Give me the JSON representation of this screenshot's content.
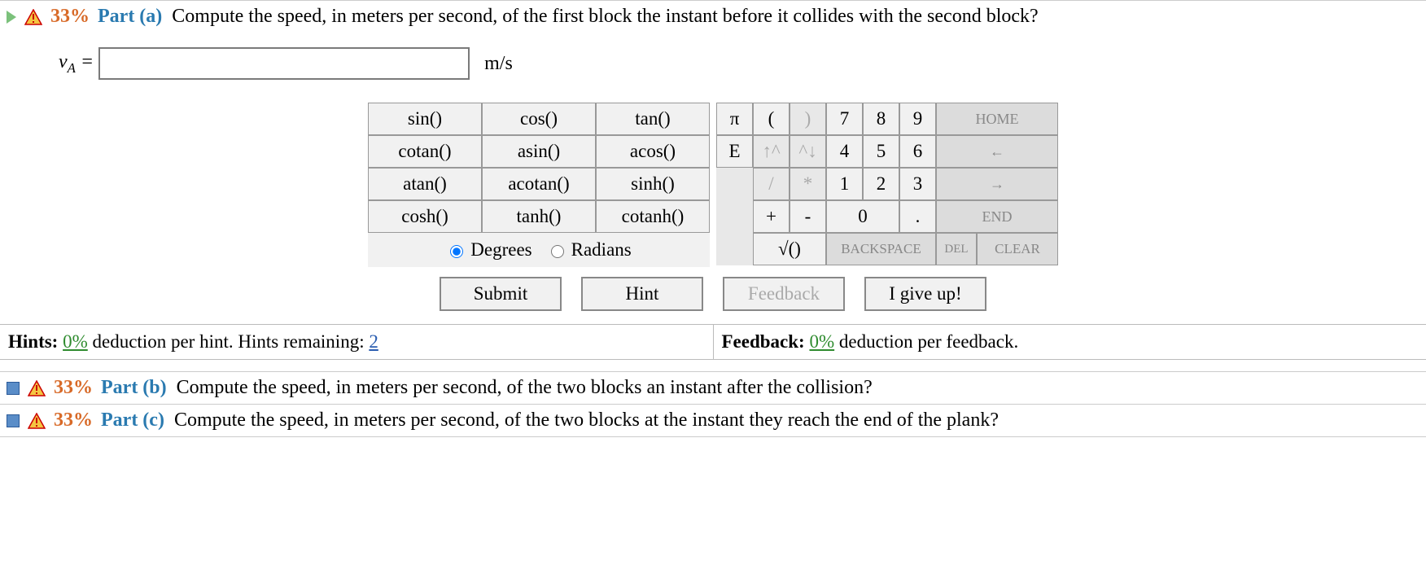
{
  "partA": {
    "percent": "33%",
    "label": "Part (a)",
    "question": "Compute the speed, in meters per second, of the first block the instant before it collides with the second block?",
    "var_html": "v<sub>A</sub>&nbsp;=",
    "input_value": "",
    "unit": "m/s"
  },
  "calculator": {
    "funcs": [
      "sin()",
      "cos()",
      "tan()",
      "cotan()",
      "asin()",
      "acos()",
      "atan()",
      "acotan()",
      "sinh()",
      "cosh()",
      "tanh()",
      "cotanh()"
    ],
    "angle_mode": {
      "degrees": "Degrees",
      "radians": "Radians",
      "selected": "degrees"
    },
    "row1": {
      "pi": "π",
      "lpar": "(",
      "rpar": ")",
      "n7": "7",
      "n8": "8",
      "n9": "9",
      "home": "HOME"
    },
    "row2": {
      "E": "E",
      "up": "↑^",
      "down": "^↓",
      "n4": "4",
      "n5": "5",
      "n6": "6",
      "left": "←"
    },
    "row3": {
      "slash": "/",
      "star": "*",
      "n1": "1",
      "n2": "2",
      "n3": "3",
      "right": "→"
    },
    "row4": {
      "plus": "+",
      "minus": "-",
      "n0": "0",
      "dot": ".",
      "end": "END"
    },
    "row5": {
      "sqrt": "√()",
      "backspace": "BACKSPACE",
      "del": "DEL",
      "clear": "CLEAR"
    }
  },
  "actions": {
    "submit": "Submit",
    "hint": "Hint",
    "feedback": "Feedback",
    "giveup": "I give up!"
  },
  "info": {
    "hints_label": "Hints:",
    "hints_pct": "0%",
    "hints_mid": " deduction per hint. Hints remaining: ",
    "hints_remaining": "2",
    "feedback_label": "Feedback:",
    "feedback_pct": "0%",
    "feedback_tail": " deduction per feedback."
  },
  "partB": {
    "percent": "33%",
    "label": "Part (b)",
    "question": "Compute the speed, in meters per second, of the two blocks an instant after the collision?"
  },
  "partC": {
    "percent": "33%",
    "label": "Part (c)",
    "question": "Compute the speed, in meters per second, of the two blocks at the instant they reach the end of the plank?"
  }
}
